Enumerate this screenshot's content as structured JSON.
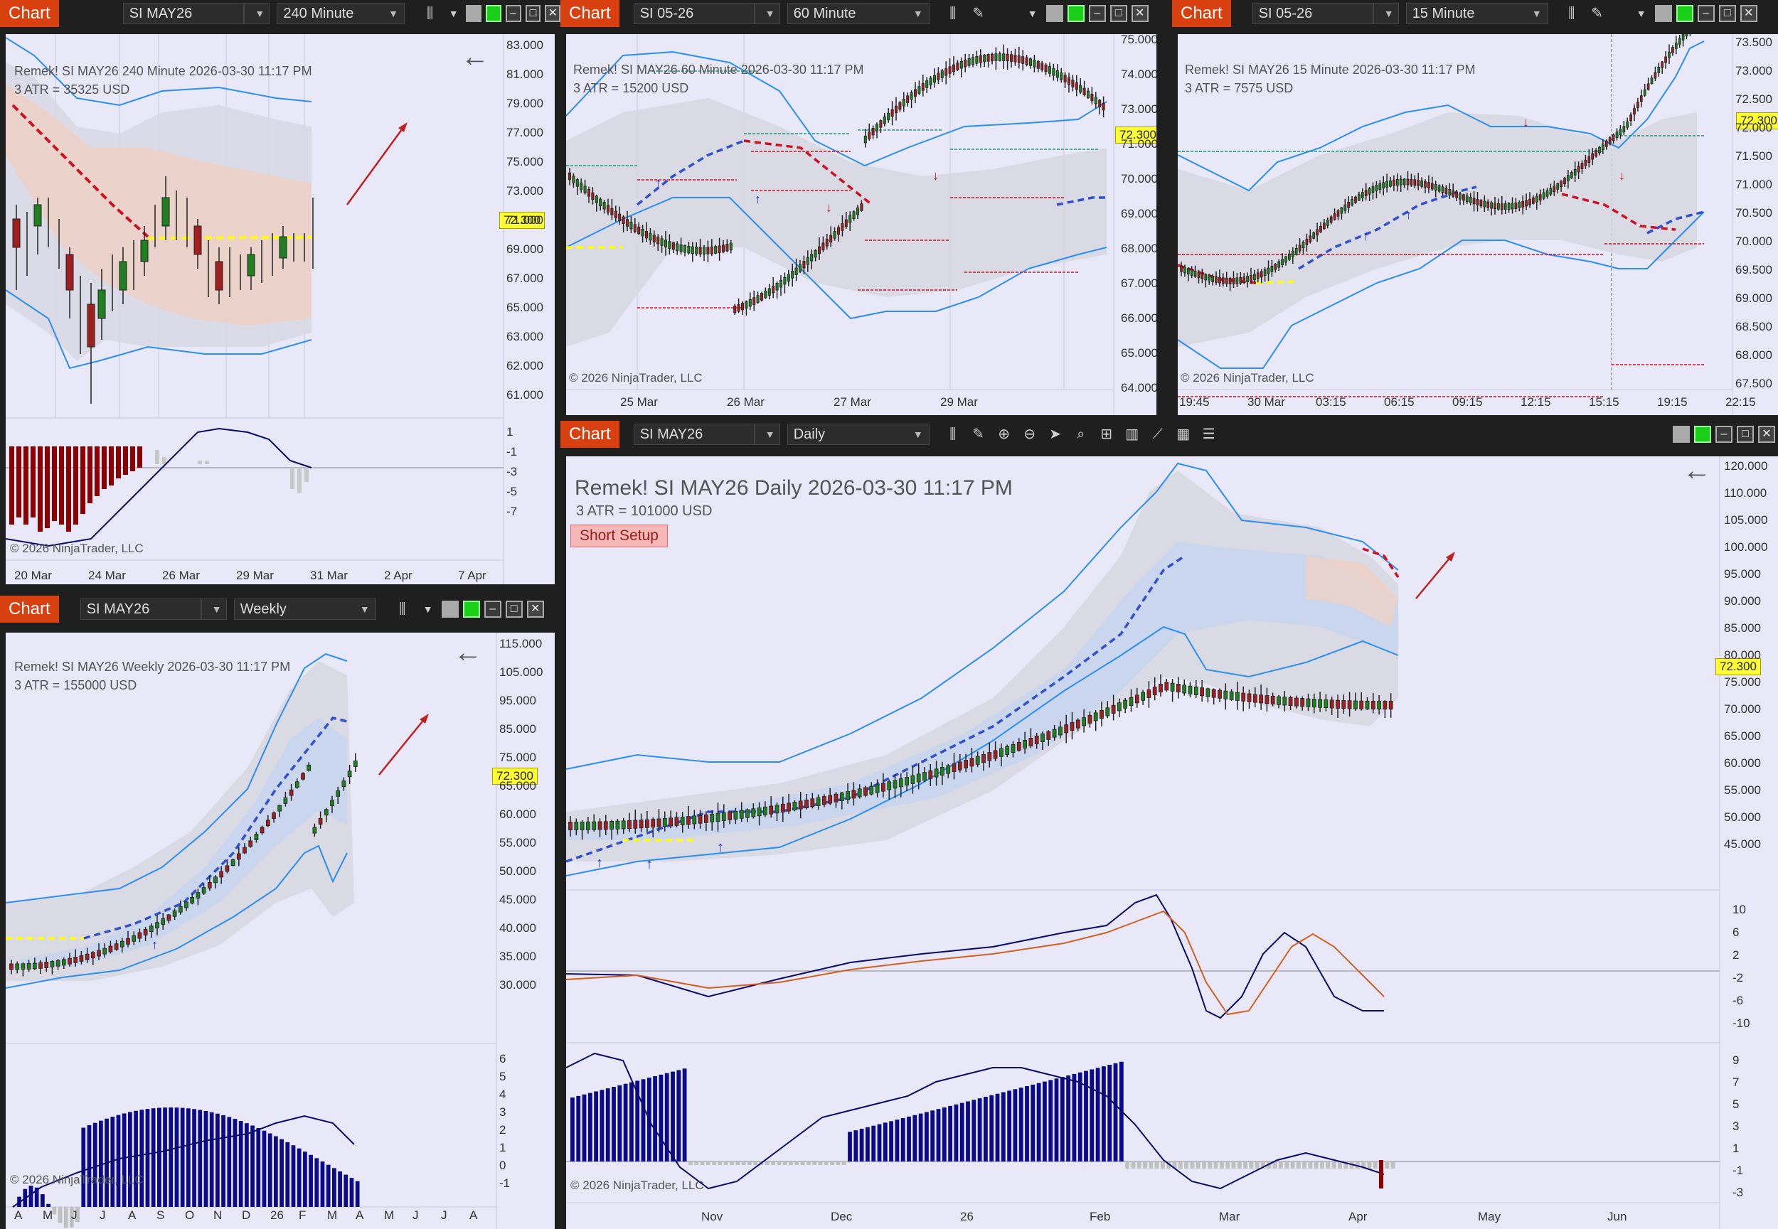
{
  "windows": [
    {
      "id": "w1",
      "chart_tag": "Chart",
      "instrument": "SI MAY26",
      "interval": "240 Minute",
      "info_line1": "Remek!  SI MAY26  240 Minute  2026-03-30 11:17 PM",
      "info_line2": "3 ATR = 35325 USD",
      "copyright": "© 2026 NinjaTrader, LLC",
      "price_tag": "72.300",
      "price_labels": [
        "83.000",
        "81.000",
        "79.000",
        "77.000",
        "75.000",
        "73.000",
        "71.000",
        "69.000",
        "67.000",
        "65.000",
        "63.000",
        "62.000",
        "61.000"
      ],
      "indicator_labels": [
        "1",
        "-1",
        "-3",
        "-5",
        "-7"
      ],
      "time_labels": [
        "20 Mar",
        "24 Mar",
        "26 Mar",
        "29 Mar",
        "31 Mar",
        "2 Apr",
        "7 Apr"
      ]
    },
    {
      "id": "w2",
      "chart_tag": "Chart",
      "instrument": "SI 05-26",
      "interval": "60 Minute",
      "info_line1": "Remek!  SI MAY26  60 Minute  2026-03-30 11:17 PM",
      "info_line2": "3 ATR = 15200 USD",
      "copyright": "© 2026 NinjaTrader, LLC",
      "price_tag": "72.300",
      "price_labels": [
        "75.000",
        "74.000",
        "73.000",
        "71.000",
        "70.000",
        "69.000",
        "68.000",
        "67.000",
        "66.000",
        "65.000",
        "64.000"
      ],
      "time_labels": [
        "25 Mar",
        "26 Mar",
        "27 Mar",
        "29 Mar"
      ]
    },
    {
      "id": "w3",
      "chart_tag": "Chart",
      "instrument": "SI 05-26",
      "interval": "15 Minute",
      "info_line1": "Remek!  SI MAY26  15 Minute  2026-03-30 11:17 PM",
      "info_line2": "3 ATR = 7575 USD",
      "copyright": "© 2026 NinjaTrader, LLC",
      "price_tag": "72.300",
      "price_labels": [
        "73.500",
        "73.000",
        "72.500",
        "72.000",
        "71.500",
        "71.000",
        "70.500",
        "70.000",
        "69.500",
        "69.000",
        "68.500",
        "68.000",
        "67.500"
      ],
      "time_labels": [
        "19:45",
        "30 Mar",
        "03:15",
        "06:15",
        "09:15",
        "12:15",
        "15:15",
        "19:15",
        "22:15"
      ]
    },
    {
      "id": "w4",
      "chart_tag": "Chart",
      "instrument": "SI MAY26",
      "interval": "Weekly",
      "info_line1": "Remek!  SI MAY26  Weekly  2026-03-30 11:17 PM",
      "info_line2": "3 ATR = 155000 USD",
      "copyright": "© 2026 NinjaTrader, LLC",
      "price_tag": "72.300",
      "price_labels": [
        "115.000",
        "105.000",
        "95.000",
        "85.000",
        "75.000",
        "65.000",
        "60.000",
        "55.000",
        "50.000",
        "45.000",
        "40.000",
        "35.000",
        "30.000"
      ],
      "indicator_labels": [
        "6",
        "5",
        "4",
        "3",
        "2",
        "1",
        "0",
        "-1"
      ],
      "time_labels": [
        "A",
        "M",
        "J",
        "J",
        "A",
        "S",
        "O",
        "N",
        "D",
        "26",
        "F",
        "M",
        "A",
        "M",
        "J",
        "J",
        "A"
      ]
    },
    {
      "id": "w5",
      "chart_tag": "Chart",
      "instrument": "SI MAY26",
      "interval": "Daily",
      "info_line1": "Remek!  SI MAY26  Daily  2026-03-30 11:17 PM",
      "info_line2": "3 ATR = 101000 USD",
      "setup_label": "Short Setup",
      "copyright": "© 2026 NinjaTrader, LLC",
      "price_tag": "72.300",
      "price_labels": [
        "120.000",
        "110.000",
        "105.000",
        "100.000",
        "95.000",
        "90.000",
        "85.000",
        "80.000",
        "75.000",
        "70.000",
        "65.000",
        "60.000",
        "55.000",
        "50.000",
        "45.000"
      ],
      "macd_labels": [
        "10",
        "6",
        "2",
        "-2",
        "-6",
        "-10"
      ],
      "indicator_labels": [
        "9",
        "7",
        "5",
        "3",
        "1",
        "-1",
        "-3"
      ],
      "time_labels": [
        "Nov",
        "Dec",
        "26",
        "Feb",
        "Mar",
        "Apr",
        "May",
        "Jun"
      ]
    }
  ],
  "colors": {
    "chart_tag": "#d8400f",
    "plot_bg": "#e8e8f8",
    "band": "#2a8ff0",
    "dashed_red": "#d01020",
    "dashed_blue": "#3050d0",
    "dashed_yellow": "#ffff00",
    "histogram_red": "#8b0000",
    "histogram_blue": "#0a0a8a",
    "price_tag": "#ffff33"
  },
  "icons": [
    "bar-chart-icon",
    "pencil-icon",
    "zoom-in-icon",
    "zoom-out-icon",
    "cursor-icon",
    "data-box-icon",
    "properties-icon",
    "indicators-icon",
    "strategies-icon",
    "templates-icon",
    "list-icon",
    "arrow-left-icon",
    "arrow-up-right-icon"
  ]
}
